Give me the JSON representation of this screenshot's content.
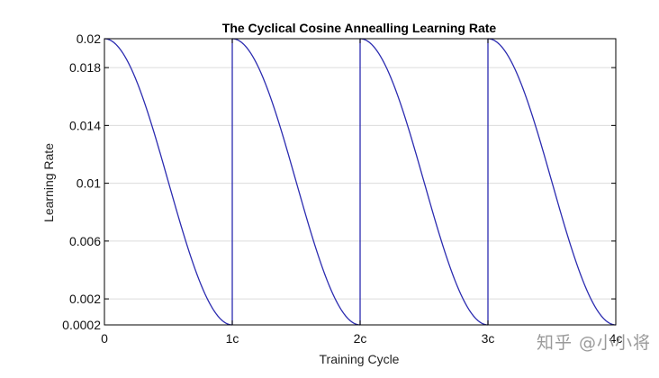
{
  "chart_data": {
    "type": "line",
    "title": "The Cyclical Cosine Annealling Learning Rate",
    "xlabel": "Training Cycle",
    "ylabel": "Learning Rate",
    "xlim": [
      0,
      4
    ],
    "ylim": [
      0.0002,
      0.02
    ],
    "x_ticks": [
      {
        "value": 0,
        "label": "0"
      },
      {
        "value": 1,
        "label": "1c"
      },
      {
        "value": 2,
        "label": "2c"
      },
      {
        "value": 3,
        "label": "3c"
      },
      {
        "value": 4,
        "label": "4c"
      }
    ],
    "y_ticks": [
      {
        "value": 0.0002,
        "label": "0.0002"
      },
      {
        "value": 0.002,
        "label": "0.002"
      },
      {
        "value": 0.006,
        "label": "0.006"
      },
      {
        "value": 0.01,
        "label": "0.01"
      },
      {
        "value": 0.014,
        "label": "0.014"
      },
      {
        "value": 0.018,
        "label": "0.018"
      },
      {
        "value": 0.02,
        "label": "0.02"
      }
    ],
    "grid": true,
    "series": [
      {
        "color": "#2b2bb0",
        "x": [
          0,
          0.125,
          0.25,
          0.375,
          0.5,
          0.625,
          0.75,
          0.875,
          1.0,
          1.125,
          1.25,
          1.375,
          1.5,
          1.625,
          1.75,
          1.875,
          2.0,
          2.125,
          2.25,
          2.375,
          2.5,
          2.625,
          2.75,
          2.875,
          3.0,
          3.125,
          3.25,
          3.375,
          3.5,
          3.625,
          3.75,
          3.875,
          4.0
        ],
        "y": [
          0.02,
          0.01925,
          0.0171,
          0.01389,
          0.0101,
          0.00631,
          0.0031,
          0.00095,
          0.0002,
          0.01925,
          0.0171,
          0.01389,
          0.0101,
          0.00631,
          0.0031,
          0.00095,
          0.0002,
          0.01925,
          0.0171,
          0.01389,
          0.0101,
          0.00631,
          0.0031,
          0.00095,
          0.0002,
          0.01925,
          0.0171,
          0.01389,
          0.0101,
          0.00631,
          0.0031,
          0.00095,
          0.0002
        ]
      }
    ]
  },
  "watermark": "知乎 @小小将"
}
